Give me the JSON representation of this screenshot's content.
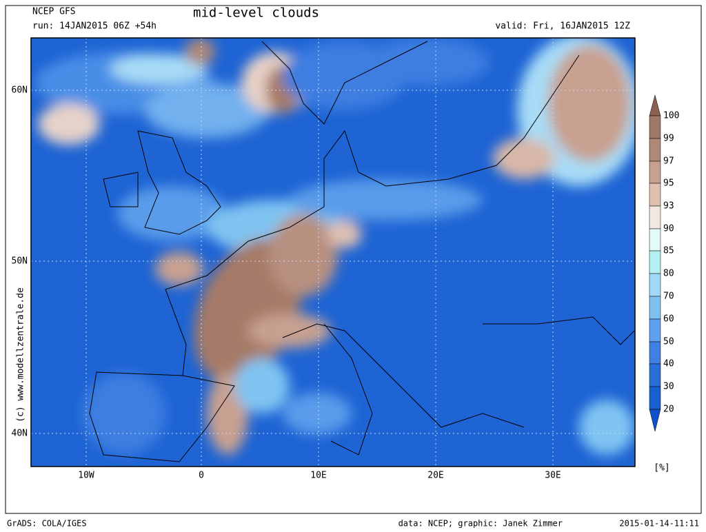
{
  "header": {
    "model": "NCEP GFS",
    "run": "run: 14JAN2015 06Z +54h",
    "title": "mid-level clouds",
    "valid": "valid: Fri, 16JAN2015 12Z"
  },
  "map": {
    "lat_labels": [
      "60N",
      "50N",
      "40N"
    ],
    "lon_labels": [
      "10W",
      "0",
      "10E",
      "20E",
      "30E"
    ],
    "credit": "(c) www.modellzentrale.de"
  },
  "colorbar": {
    "labels": [
      "100",
      "99",
      "97",
      "95",
      "93",
      "90",
      "85",
      "80",
      "70",
      "60",
      "50",
      "40",
      "30",
      "20"
    ],
    "unit": "[%]"
  },
  "footer": {
    "software": "GrADS: COLA/IGES",
    "source": "data: NCEP; graphic: Janek Zimmer",
    "timestamp": "2015-01-14-11:11"
  }
}
